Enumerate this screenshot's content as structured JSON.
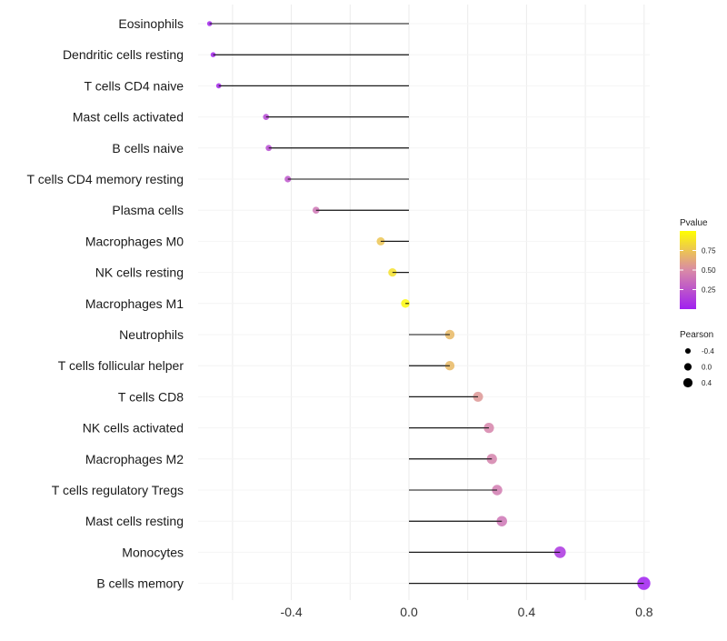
{
  "chart_data": {
    "type": "lollipop",
    "title": "",
    "xlabel": "",
    "ylabel": "",
    "xlim": [
      -0.68,
      0.8
    ],
    "xticks": [
      -0.4,
      0.0,
      0.4,
      0.8
    ],
    "xtick_labels": [
      "-0.4",
      "0.0",
      "0.4",
      "0.8"
    ],
    "grid": true,
    "categories": [
      "Eosinophils",
      "Dendritic cells resting",
      "T cells CD4 naive",
      "Mast cells activated",
      "B cells naive",
      "T cells CD4 memory resting",
      "Plasma cells",
      "Macrophages M0",
      "NK cells resting",
      "Macrophages M1",
      "Neutrophils",
      "T cells follicular helper",
      "T cells CD8",
      "NK cells activated",
      "Macrophages M2",
      "T cells regulatory  Tregs ",
      "Mast cells resting",
      "Monocytes",
      "B cells memory"
    ],
    "pearson": [
      -0.678,
      -0.666,
      -0.647,
      -0.486,
      -0.477,
      -0.412,
      -0.316,
      -0.096,
      -0.056,
      -0.012,
      0.139,
      0.139,
      0.235,
      0.272,
      0.282,
      0.3,
      0.316,
      0.514,
      0.799
    ],
    "pvalue": [
      0.02,
      0.03,
      0.04,
      0.18,
      0.2,
      0.25,
      0.4,
      0.75,
      0.87,
      0.97,
      0.7,
      0.7,
      0.55,
      0.47,
      0.46,
      0.43,
      0.4,
      0.1,
      0.0
    ],
    "legend": {
      "placement": "right",
      "color": {
        "title": "Pvalue",
        "ticks": [
          0.25,
          0.5,
          0.75
        ],
        "tick_labels": [
          "0.25",
          "0.50",
          "0.75"
        ],
        "low": "#a020f0",
        "mid": "#d98aa6",
        "high": "#ffff00"
      },
      "size": {
        "title": "Pearson",
        "values": [
          -0.4,
          0.0,
          0.4
        ],
        "labels": [
          "-0.4",
          "0.0",
          "0.4"
        ]
      }
    }
  }
}
